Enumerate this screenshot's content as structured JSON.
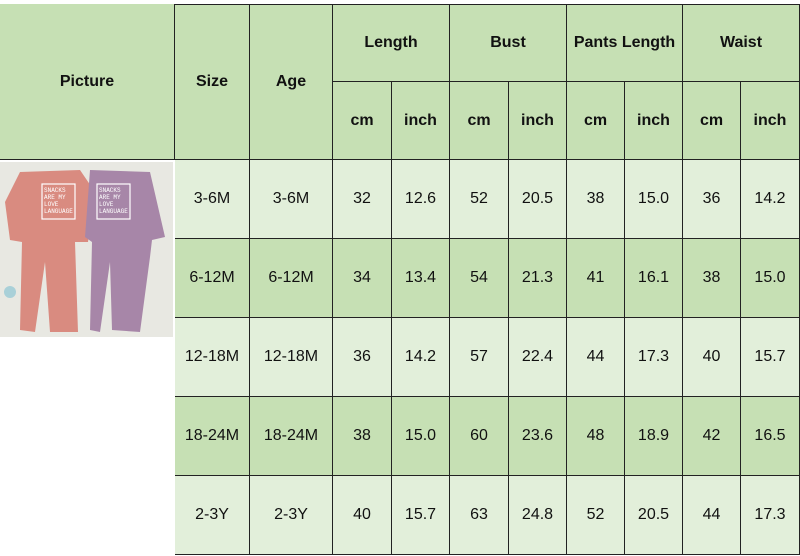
{
  "headers": {
    "picture": "Picture",
    "size": "Size",
    "age": "Age",
    "groups": [
      "Length",
      "Bust",
      "Pants Length",
      "Waist"
    ],
    "units": [
      "cm",
      "inch",
      "cm",
      "inch",
      "cm",
      "inch",
      "cm",
      "inch"
    ]
  },
  "product_text": "SNACKS ARE MY LOVE LANGUAGE",
  "colors": {
    "header": "#c6e0b4",
    "row_light": "#e2efda",
    "row_green": "#c6e0b4"
  },
  "rows": [
    {
      "size": "3-6M",
      "age": "3-6M",
      "values": [
        "32",
        "12.6",
        "52",
        "20.5",
        "38",
        "15.0",
        "36",
        "14.2"
      ]
    },
    {
      "size": "6-12M",
      "age": "6-12M",
      "values": [
        "34",
        "13.4",
        "54",
        "21.3",
        "41",
        "16.1",
        "38",
        "15.0"
      ]
    },
    {
      "size": "12-18M",
      "age": "12-18M",
      "values": [
        "36",
        "14.2",
        "57",
        "22.4",
        "44",
        "17.3",
        "40",
        "15.7"
      ]
    },
    {
      "size": "18-24M",
      "age": "18-24M",
      "values": [
        "38",
        "15.0",
        "60",
        "23.6",
        "48",
        "18.9",
        "42",
        "16.5"
      ]
    },
    {
      "size": "2-3Y",
      "age": "2-3Y",
      "values": [
        "40",
        "15.7",
        "63",
        "24.8",
        "52",
        "20.5",
        "44",
        "17.3"
      ]
    }
  ]
}
